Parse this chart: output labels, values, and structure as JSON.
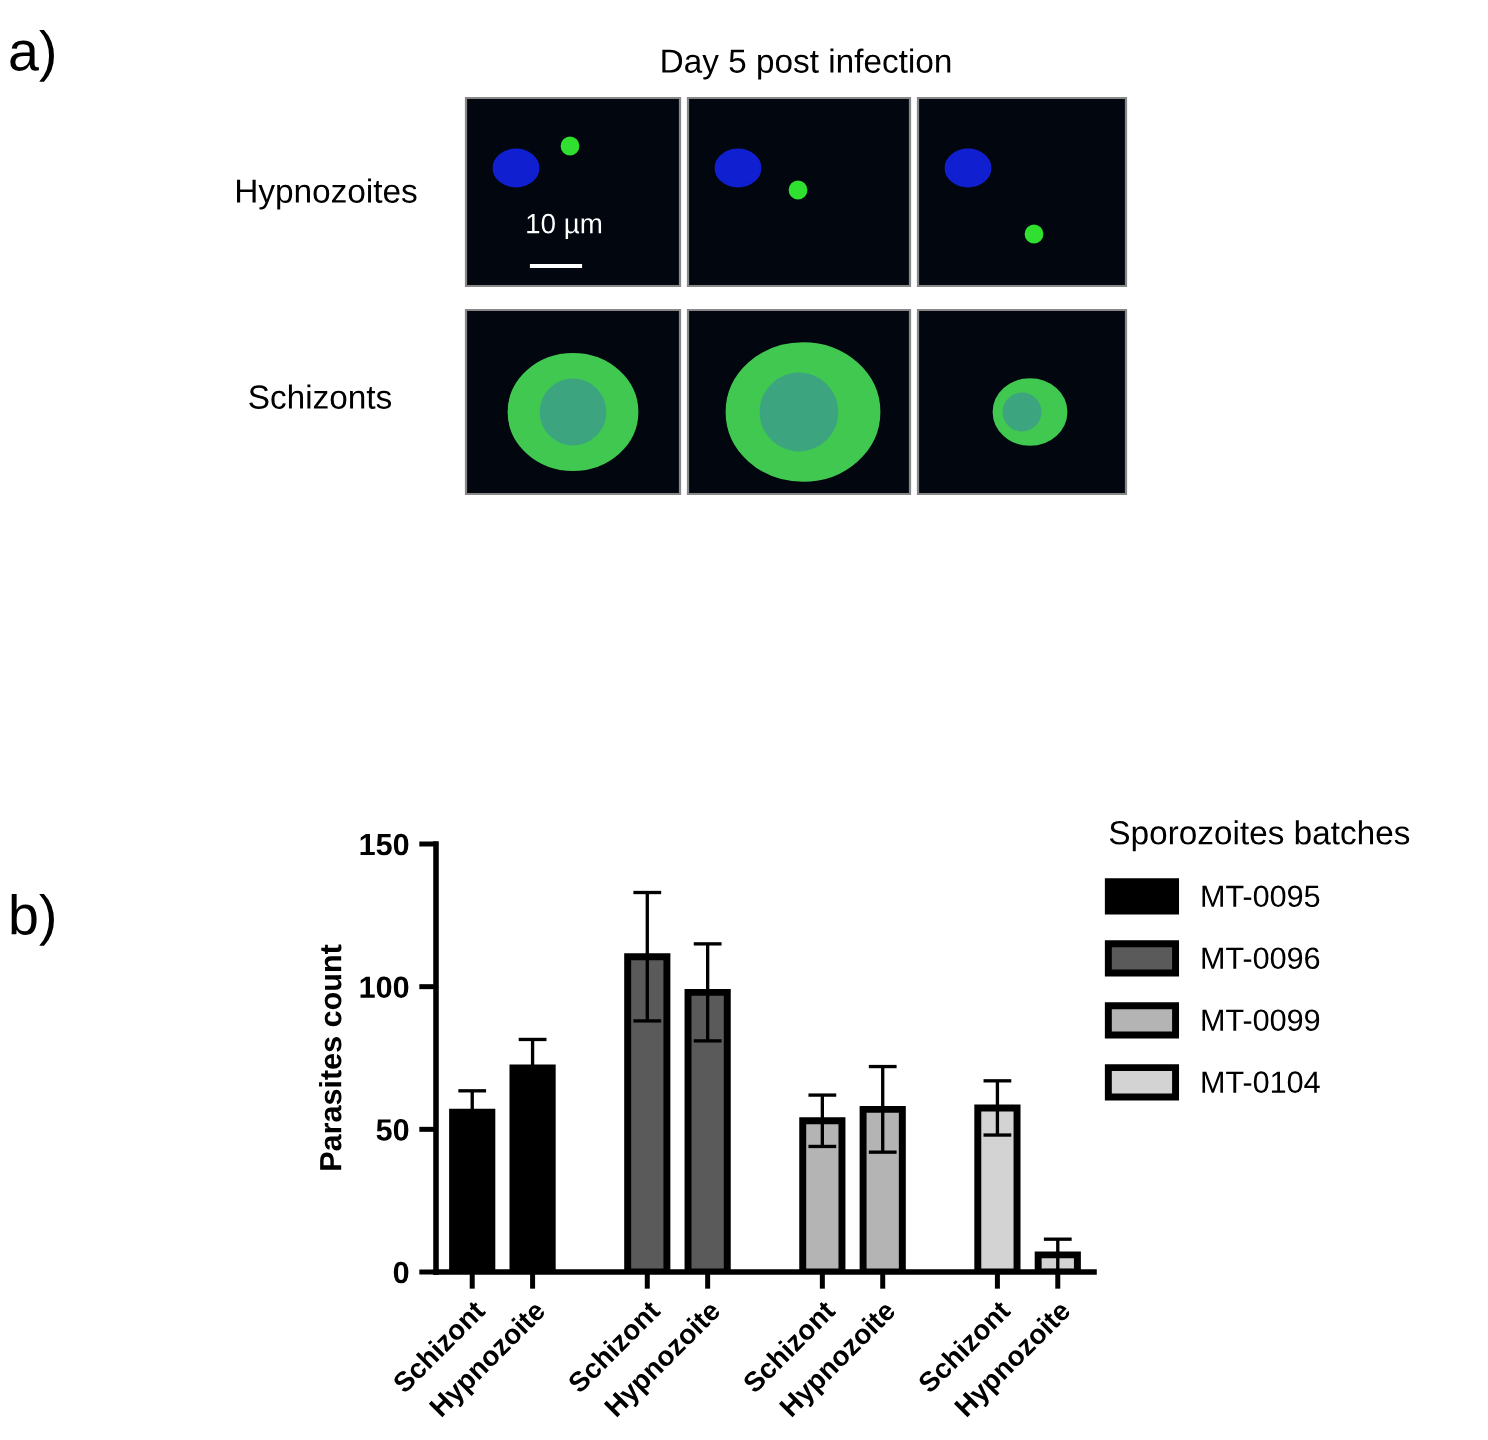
{
  "chart_data": {
    "type": "bar",
    "categories": [
      "Schizont",
      "Hypnozoite",
      "Schizont",
      "Hypnozoite",
      "Schizont",
      "Hypnozoite",
      "Schizont",
      "Hypnozoite"
    ],
    "series": [
      {
        "name": "MT-0095",
        "color": "#000000",
        "values": [
          56,
          71.5,
          null,
          null,
          null,
          null,
          null,
          null
        ],
        "errors": [
          7.5,
          10,
          null,
          null,
          null,
          null,
          null,
          null
        ]
      },
      {
        "name": "MT-0096",
        "color": "#5a5a5a",
        "values": [
          null,
          null,
          110.5,
          98,
          null,
          null,
          null,
          null
        ],
        "errors": [
          null,
          null,
          22.5,
          17,
          null,
          null,
          null,
          null
        ]
      },
      {
        "name": "MT-0099",
        "color": "#b4b4b4",
        "values": [
          null,
          null,
          null,
          null,
          53,
          57,
          null,
          null
        ],
        "errors": [
          null,
          null,
          null,
          null,
          9,
          15,
          null,
          null
        ]
      },
      {
        "name": "MT-0104",
        "color": "#d3d3d3",
        "values": [
          null,
          null,
          null,
          null,
          null,
          null,
          57.5,
          6
        ],
        "errors": [
          null,
          null,
          null,
          null,
          null,
          null,
          9.5,
          5.5
        ]
      }
    ],
    "ylabel": "Parasites count",
    "legend_title": "Sporozoites batches",
    "legend": "right",
    "ylim": [
      0,
      150
    ],
    "yticks": [
      0,
      50,
      100,
      150
    ],
    "grid": false,
    "annotations": [
      "a)",
      "Day 5 post infection",
      "Hypnozoites",
      "Schizonts",
      "10 µm",
      "b)"
    ]
  }
}
